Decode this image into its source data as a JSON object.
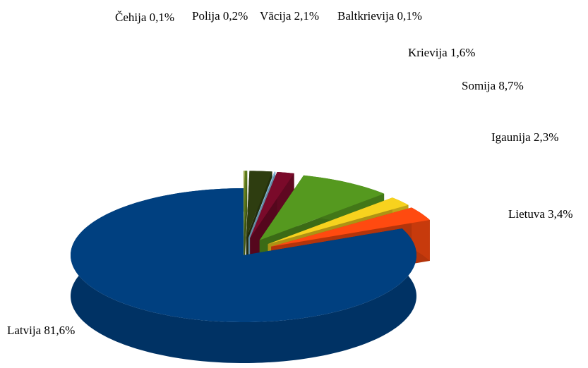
{
  "chart_data": {
    "type": "pie",
    "categories": [
      "Čehija",
      "Polija",
      "Vācija",
      "Baltkrievija",
      "Krievija",
      "Somija",
      "Igaunija",
      "Lietuva",
      "Latvija"
    ],
    "values": [
      0.1,
      0.2,
      2.1,
      0.1,
      1.6,
      8.7,
      2.3,
      3.4,
      81.6
    ],
    "value_labels": [
      "0,1%",
      "0,2%",
      "2,1%",
      "0,1%",
      "1,6%",
      "8,7%",
      "2,3%",
      "3,4%",
      "81,6%"
    ],
    "colors": [
      "#8a9a2a",
      "#5b7a1a",
      "#2e3d10",
      "#8fc3e6",
      "#7a0a2a",
      "#55991f",
      "#f7d21e",
      "#ff4a10",
      "#004080"
    ]
  }
}
